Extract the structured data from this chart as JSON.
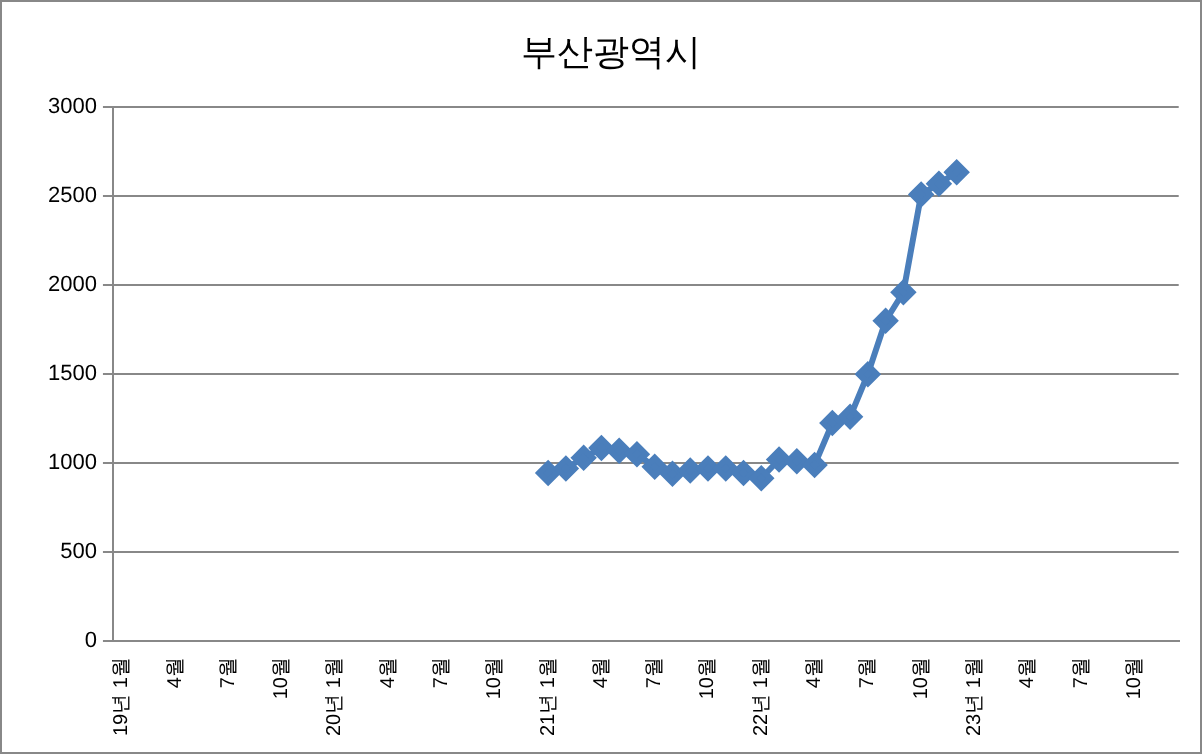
{
  "chart_data": {
    "type": "line",
    "title": "부산광역시",
    "categories": [
      "19년 1월",
      null,
      null,
      "4월",
      null,
      null,
      "7월",
      null,
      null,
      "10월",
      null,
      null,
      "20년 1월",
      null,
      null,
      "4월",
      null,
      null,
      "7월",
      null,
      null,
      "10월",
      null,
      null,
      "21년 1월",
      null,
      null,
      "4월",
      null,
      null,
      "7월",
      null,
      null,
      "10월",
      null,
      null,
      "22년 1월",
      null,
      null,
      "4월",
      null,
      null,
      "7월",
      null,
      null,
      "10월",
      null,
      null,
      "23년 1월",
      null,
      null,
      "4월",
      null,
      null,
      "7월",
      null,
      null,
      "10월",
      null,
      null
    ],
    "series": [
      {
        "color": "#4a7ebb",
        "values": [
          null,
          null,
          null,
          null,
          null,
          null,
          null,
          null,
          null,
          null,
          null,
          null,
          null,
          null,
          null,
          null,
          null,
          null,
          null,
          null,
          null,
          null,
          null,
          null,
          945,
          970,
          1030,
          1085,
          1070,
          1050,
          980,
          940,
          958,
          970,
          970,
          945,
          915,
          1020,
          1010,
          990,
          1225,
          1260,
          1500,
          1800,
          1960,
          2510,
          2570,
          2635,
          null,
          null,
          null,
          null,
          null,
          null,
          null,
          null,
          null,
          null,
          null,
          null
        ]
      }
    ],
    "ylim": [
      0,
      3000
    ],
    "yticks": [
      0,
      500,
      1000,
      1500,
      2000,
      2500,
      3000
    ],
    "grid": "y",
    "legend": false,
    "marker": "diamond",
    "line_style": "solid"
  }
}
